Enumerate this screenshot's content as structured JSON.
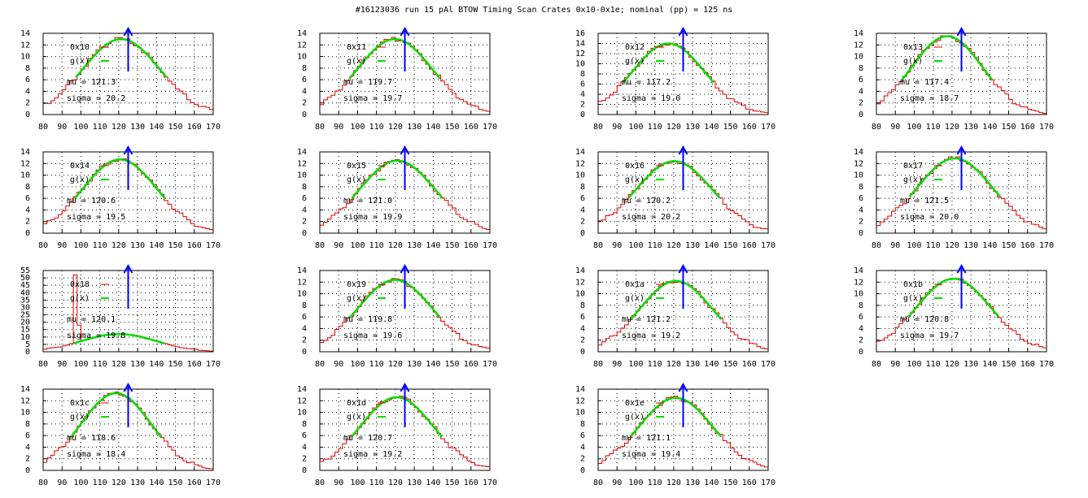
{
  "title": "#16123036 run 15 pAl BTOW Timing Scan Crates 0x10-0x1e; nominal (pp) = 125 ns",
  "colors": {
    "hist": "#e00000",
    "fit": "#00dd00",
    "arrow": "#0000ff",
    "axis": "#000000",
    "grid": "#000000"
  },
  "fit_label": "g(x)",
  "nominal_ns": 125,
  "chart_data": [
    {
      "type": "histogram",
      "name": "0x10",
      "fit_label": "g(x)",
      "mu_label": "mu = 121.3",
      "sigma_label": "sigma = 20.2",
      "mu": 121.3,
      "sigma": 20.2,
      "peak": 13,
      "xlim": [
        80,
        170
      ],
      "ylim": [
        0,
        14
      ],
      "yticks": [
        0,
        2,
        4,
        6,
        8,
        10,
        12,
        14
      ],
      "xticks": [
        80,
        90,
        100,
        110,
        120,
        130,
        140,
        150,
        160,
        170
      ],
      "arrow_x": 125,
      "grid": true
    },
    {
      "type": "histogram",
      "name": "0x11",
      "fit_label": "g(x)",
      "mu_label": "mu = 119.7",
      "sigma_label": "sigma = 19.7",
      "mu": 119.7,
      "sigma": 19.7,
      "peak": 13,
      "xlim": [
        80,
        170
      ],
      "ylim": [
        0,
        14
      ],
      "yticks": [
        0,
        2,
        4,
        6,
        8,
        10,
        12,
        14
      ],
      "xticks": [
        80,
        90,
        100,
        110,
        120,
        130,
        140,
        150,
        160,
        170
      ],
      "arrow_x": 125,
      "grid": true
    },
    {
      "type": "histogram",
      "name": "0x12",
      "fit_label": "g(x)",
      "mu_label": "mu = 117.2",
      "sigma_label": "sigma = 19.0",
      "mu": 117.2,
      "sigma": 19.0,
      "peak": 14,
      "xlim": [
        80,
        170
      ],
      "ylim": [
        0,
        16
      ],
      "yticks": [
        0,
        2,
        4,
        6,
        8,
        10,
        12,
        14,
        16
      ],
      "xticks": [
        80,
        90,
        100,
        110,
        120,
        130,
        140,
        150,
        160,
        170
      ],
      "arrow_x": 125,
      "grid": true
    },
    {
      "type": "histogram",
      "name": "0x13",
      "fit_label": "g(x)",
      "mu_label": "mu = 117.4",
      "sigma_label": "sigma = 18.7",
      "mu": 117.4,
      "sigma": 18.7,
      "peak": 13.5,
      "xlim": [
        80,
        170
      ],
      "ylim": [
        0,
        14
      ],
      "yticks": [
        0,
        2,
        4,
        6,
        8,
        10,
        12,
        14
      ],
      "xticks": [
        80,
        90,
        100,
        110,
        120,
        130,
        140,
        150,
        160,
        170
      ],
      "arrow_x": 125,
      "grid": true
    },
    {
      "type": "histogram",
      "name": "0x14",
      "fit_label": "g(x)",
      "mu_label": "mu = 120.6",
      "sigma_label": "sigma = 19.5",
      "mu": 120.6,
      "sigma": 19.5,
      "peak": 12.7,
      "xlim": [
        80,
        170
      ],
      "ylim": [
        0,
        14
      ],
      "yticks": [
        0,
        2,
        4,
        6,
        8,
        10,
        12,
        14
      ],
      "xticks": [
        80,
        90,
        100,
        110,
        120,
        130,
        140,
        150,
        160,
        170
      ],
      "arrow_x": 125,
      "grid": true
    },
    {
      "type": "histogram",
      "name": "0x15",
      "fit_label": "g(x)",
      "mu_label": "mu = 121.0",
      "sigma_label": "sigma = 19.9",
      "mu": 121.0,
      "sigma": 19.9,
      "peak": 12.5,
      "xlim": [
        80,
        170
      ],
      "ylim": [
        0,
        14
      ],
      "yticks": [
        0,
        2,
        4,
        6,
        8,
        10,
        12,
        14
      ],
      "xticks": [
        80,
        90,
        100,
        110,
        120,
        130,
        140,
        150,
        160,
        170
      ],
      "arrow_x": 125,
      "grid": true
    },
    {
      "type": "histogram",
      "name": "0x16",
      "fit_label": "g(x)",
      "mu_label": "mu = 120.2",
      "sigma_label": "sigma = 20.2",
      "mu": 120.2,
      "sigma": 20.2,
      "peak": 12.4,
      "xlim": [
        80,
        170
      ],
      "ylim": [
        0,
        14
      ],
      "yticks": [
        0,
        2,
        4,
        6,
        8,
        10,
        12,
        14
      ],
      "xticks": [
        80,
        90,
        100,
        110,
        120,
        130,
        140,
        150,
        160,
        170
      ],
      "arrow_x": 125,
      "grid": true
    },
    {
      "type": "histogram",
      "name": "0x17",
      "fit_label": "g(x)",
      "mu_label": "mu = 121.5",
      "sigma_label": "sigma = 20.0",
      "mu": 121.5,
      "sigma": 20.0,
      "peak": 12.9,
      "xlim": [
        80,
        170
      ],
      "ylim": [
        0,
        14
      ],
      "yticks": [
        0,
        2,
        4,
        6,
        8,
        10,
        12,
        14
      ],
      "xticks": [
        80,
        90,
        100,
        110,
        120,
        130,
        140,
        150,
        160,
        170
      ],
      "arrow_x": 125,
      "grid": true
    },
    {
      "type": "histogram",
      "name": "0x18",
      "fit_label": "g(x)",
      "mu_label": "mu = 120.1",
      "sigma_label": "sigma = 19.8",
      "mu": 120.1,
      "sigma": 19.8,
      "peak": 12,
      "spike": [
        {
          "x": 97,
          "y": 52
        },
        {
          "x": 99,
          "y": 18
        }
      ],
      "xlim": [
        80,
        170
      ],
      "ylim": [
        0,
        55
      ],
      "yticks": [
        0,
        5,
        10,
        15,
        20,
        25,
        30,
        35,
        40,
        45,
        50,
        55
      ],
      "xticks": [
        80,
        90,
        100,
        110,
        120,
        130,
        140,
        150,
        160,
        170
      ],
      "arrow_x": 125,
      "grid": true
    },
    {
      "type": "histogram",
      "name": "0x19",
      "fit_label": "g(x)",
      "mu_label": "mu = 119.8",
      "sigma_label": "sigma = 19.6",
      "mu": 119.8,
      "sigma": 19.6,
      "peak": 12.4,
      "xlim": [
        80,
        170
      ],
      "ylim": [
        0,
        14
      ],
      "yticks": [
        0,
        2,
        4,
        6,
        8,
        10,
        12,
        14
      ],
      "xticks": [
        80,
        90,
        100,
        110,
        120,
        130,
        140,
        150,
        160,
        170
      ],
      "arrow_x": 125,
      "grid": true
    },
    {
      "type": "histogram",
      "name": "0x1a",
      "fit_label": "g(x)",
      "mu_label": "mu = 121.2",
      "sigma_label": "sigma = 19.2",
      "mu": 121.2,
      "sigma": 19.2,
      "peak": 12.2,
      "xlim": [
        80,
        170
      ],
      "ylim": [
        0,
        14
      ],
      "yticks": [
        0,
        2,
        4,
        6,
        8,
        10,
        12,
        14
      ],
      "xticks": [
        80,
        90,
        100,
        110,
        120,
        130,
        140,
        150,
        160,
        170
      ],
      "arrow_x": 125,
      "grid": true
    },
    {
      "type": "histogram",
      "name": "0x1b",
      "fit_label": "g(x)",
      "mu_label": "mu = 120.8",
      "sigma_label": "sigma = 19.7",
      "mu": 120.8,
      "sigma": 19.7,
      "peak": 12.6,
      "xlim": [
        80,
        170
      ],
      "ylim": [
        0,
        14
      ],
      "yticks": [
        0,
        2,
        4,
        6,
        8,
        10,
        12,
        14
      ],
      "xticks": [
        80,
        90,
        100,
        110,
        120,
        130,
        140,
        150,
        160,
        170
      ],
      "arrow_x": 125,
      "grid": true
    },
    {
      "type": "histogram",
      "name": "0x1c",
      "fit_label": "g(x)",
      "mu_label": "mu = 118.6",
      "sigma_label": "sigma = 18.4",
      "mu": 118.6,
      "sigma": 18.4,
      "peak": 13.3,
      "xlim": [
        80,
        170
      ],
      "ylim": [
        0,
        14
      ],
      "yticks": [
        0,
        2,
        4,
        6,
        8,
        10,
        12,
        14
      ],
      "xticks": [
        80,
        90,
        100,
        110,
        120,
        130,
        140,
        150,
        160,
        170
      ],
      "arrow_x": 125,
      "grid": true
    },
    {
      "type": "histogram",
      "name": "0x1d",
      "fit_label": "g(x)",
      "mu_label": "mu = 120.7",
      "sigma_label": "sigma = 19.2",
      "mu": 120.7,
      "sigma": 19.2,
      "peak": 12.6,
      "xlim": [
        80,
        170
      ],
      "ylim": [
        0,
        14
      ],
      "yticks": [
        0,
        2,
        4,
        6,
        8,
        10,
        12,
        14
      ],
      "xticks": [
        80,
        90,
        100,
        110,
        120,
        130,
        140,
        150,
        160,
        170
      ],
      "arrow_x": 125,
      "grid": true
    },
    {
      "type": "histogram",
      "name": "0x1e",
      "fit_label": "g(x)",
      "mu_label": "mu = 121.1",
      "sigma_label": "sigma = 19.4",
      "mu": 121.1,
      "sigma": 19.4,
      "peak": 12.5,
      "xlim": [
        80,
        170
      ],
      "ylim": [
        0,
        14
      ],
      "yticks": [
        0,
        2,
        4,
        6,
        8,
        10,
        12,
        14
      ],
      "xticks": [
        80,
        90,
        100,
        110,
        120,
        130,
        140,
        150,
        160,
        170
      ],
      "arrow_x": 125,
      "grid": true
    }
  ]
}
